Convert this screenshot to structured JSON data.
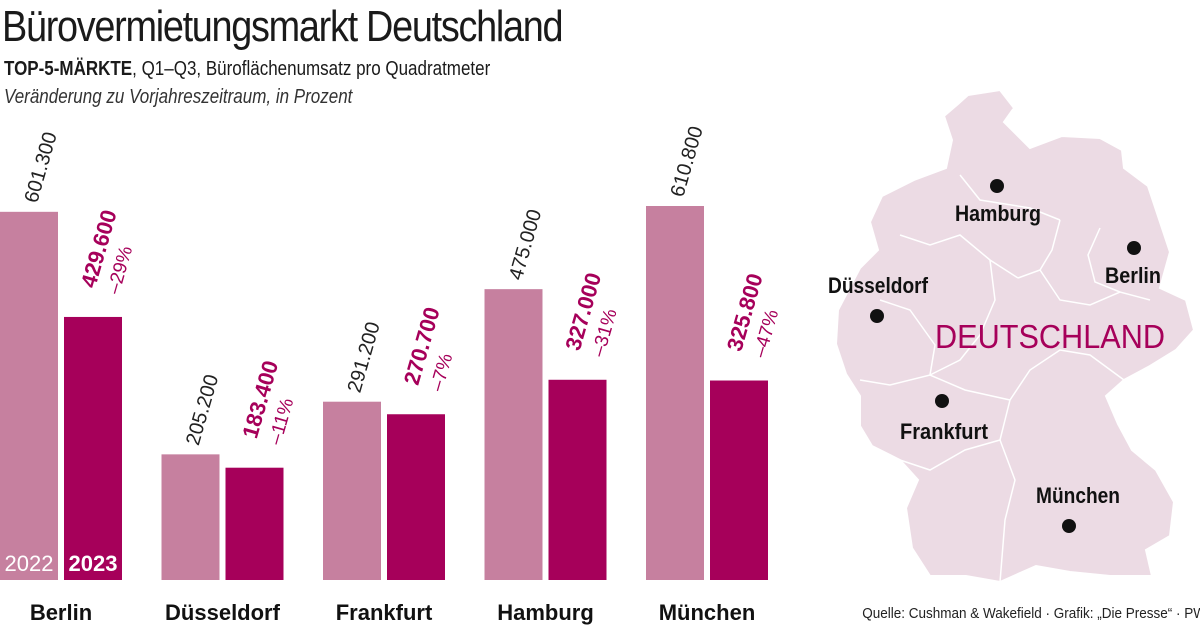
{
  "header": {
    "title": "Bürovermietungsmarkt Deutschland",
    "subtitle_bold": "TOP-5-MÄRKTE",
    "subtitle_rest": ", Q1–Q3, Büroflächenumsatz pro Quadratmeter",
    "subtitle_italic": "Veränderung zu Vorjahreszeitraum, in Prozent"
  },
  "chart_data": {
    "type": "bar",
    "categories": [
      "Berlin",
      "Düsseldorf",
      "Frankfurt",
      "Hamburg",
      "München"
    ],
    "series": [
      {
        "name": "2022",
        "values": [
          601300,
          205200,
          291200,
          475000,
          610800
        ],
        "color": "#c6809f"
      },
      {
        "name": "2023",
        "values": [
          429600,
          183400,
          270700,
          327000,
          325800
        ],
        "color": "#a6005a"
      }
    ],
    "value_labels_2022": [
      "601.300",
      "205.200",
      "291.200",
      "475.000",
      "610.800"
    ],
    "value_labels_2023": [
      "429.600",
      "183.400",
      "270.700",
      "327.000",
      "325.800"
    ],
    "change_labels": [
      "–29%",
      "–11%",
      "–7%",
      "–31%",
      "–47%"
    ],
    "grid": false
  },
  "map": {
    "country_label": "DEUTSCHLAND",
    "cities": [
      "Hamburg",
      "Berlin",
      "Düsseldorf",
      "Frankfurt",
      "München"
    ],
    "fill_color": "#ecdbe4"
  },
  "footer": {
    "source": "Quelle: Cushman & Wakefield · Grafik: „Die Presse“ · PW"
  }
}
